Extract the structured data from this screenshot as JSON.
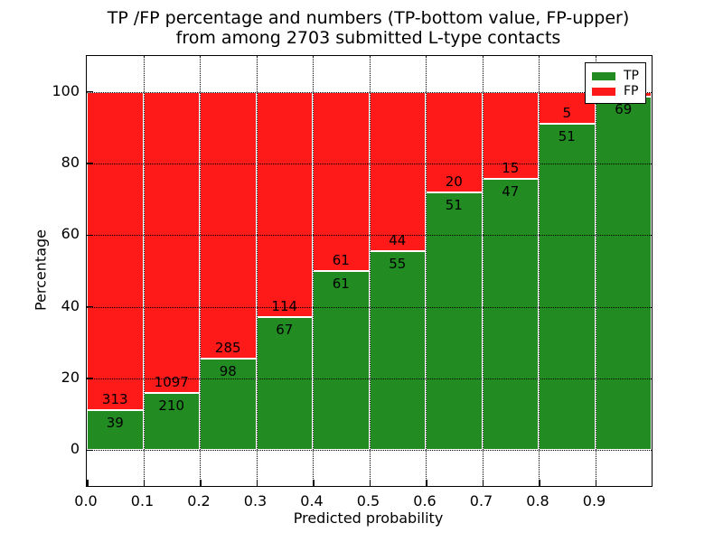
{
  "title": {
    "line1": "TP /FP percentage and numbers (TP-bottom value, FP-upper)",
    "line2": "from among 2703 submitted L-type contacts"
  },
  "axes": {
    "xlabel": "Predicted probability",
    "ylabel": "Percentage",
    "x_tick_labels": [
      "0.0",
      "0.1",
      "0.2",
      "0.3",
      "0.4",
      "0.5",
      "0.6",
      "0.7",
      "0.8",
      "0.9"
    ],
    "y_tick_labels": [
      "0",
      "20",
      "40",
      "60",
      "80",
      "100"
    ],
    "y_tick_values": [
      0,
      20,
      40,
      60,
      80,
      100
    ]
  },
  "legend": {
    "position": "upper right",
    "items": [
      {
        "label": "TP",
        "color": "#228b22"
      },
      {
        "label": "FP",
        "color": "#ff1a1a"
      }
    ]
  },
  "colors": {
    "tp": "#228b22",
    "fp": "#ff1a1a",
    "grid": "#000000",
    "background": "#ffffff"
  },
  "chart_data": {
    "type": "bar",
    "stacked": true,
    "normalized_to_percent": true,
    "title": "TP /FP percentage and numbers (TP-bottom value, FP-upper) from among 2703 submitted L-type contacts",
    "xlabel": "Predicted probability",
    "ylabel": "Percentage",
    "xlim": [
      0.0,
      1.0
    ],
    "ylim": [
      -10,
      110
    ],
    "grid": "dotted",
    "legend_position": "upper right",
    "total_contacts": 2703,
    "bin_width": 0.1,
    "categories": [
      "0.0-0.1",
      "0.1-0.2",
      "0.2-0.3",
      "0.3-0.4",
      "0.4-0.5",
      "0.5-0.6",
      "0.6-0.7",
      "0.7-0.8",
      "0.8-0.9",
      "0.9-1.0"
    ],
    "series": [
      {
        "name": "TP",
        "values": [
          39,
          210,
          98,
          67,
          61,
          55,
          51,
          47,
          51,
          69
        ]
      },
      {
        "name": "FP",
        "values": [
          313,
          1097,
          285,
          114,
          61,
          44,
          20,
          15,
          5,
          1
        ]
      }
    ],
    "bars": [
      {
        "bin_start": 0.0,
        "tp": 39,
        "fp": 313,
        "tp_pct": 11.08,
        "tp_label": "39",
        "fp_label": "313"
      },
      {
        "bin_start": 0.1,
        "tp": 210,
        "fp": 1097,
        "tp_pct": 16.07,
        "tp_label": "210",
        "fp_label": "1097"
      },
      {
        "bin_start": 0.2,
        "tp": 98,
        "fp": 285,
        "tp_pct": 25.59,
        "tp_label": "98",
        "fp_label": "285"
      },
      {
        "bin_start": 0.3,
        "tp": 67,
        "fp": 114,
        "tp_pct": 37.02,
        "tp_label": "67",
        "fp_label": "114"
      },
      {
        "bin_start": 0.4,
        "tp": 61,
        "fp": 61,
        "tp_pct": 50.0,
        "tp_label": "61",
        "fp_label": "61"
      },
      {
        "bin_start": 0.5,
        "tp": 55,
        "fp": 44,
        "tp_pct": 55.56,
        "tp_label": "55",
        "fp_label": "44"
      },
      {
        "bin_start": 0.6,
        "tp": 51,
        "fp": 20,
        "tp_pct": 71.83,
        "tp_label": "51",
        "fp_label": "20"
      },
      {
        "bin_start": 0.7,
        "tp": 47,
        "fp": 15,
        "tp_pct": 75.81,
        "tp_label": "47",
        "fp_label": "15"
      },
      {
        "bin_start": 0.8,
        "tp": 51,
        "fp": 5,
        "tp_pct": 91.07,
        "tp_label": "51",
        "fp_label": "5"
      },
      {
        "bin_start": 0.9,
        "tp": 69,
        "fp": 1,
        "tp_pct": 98.57,
        "tp_label": "69",
        "fp_label": ""
      }
    ],
    "note_fp_label_last_bin_hidden_behind_legend": true
  }
}
